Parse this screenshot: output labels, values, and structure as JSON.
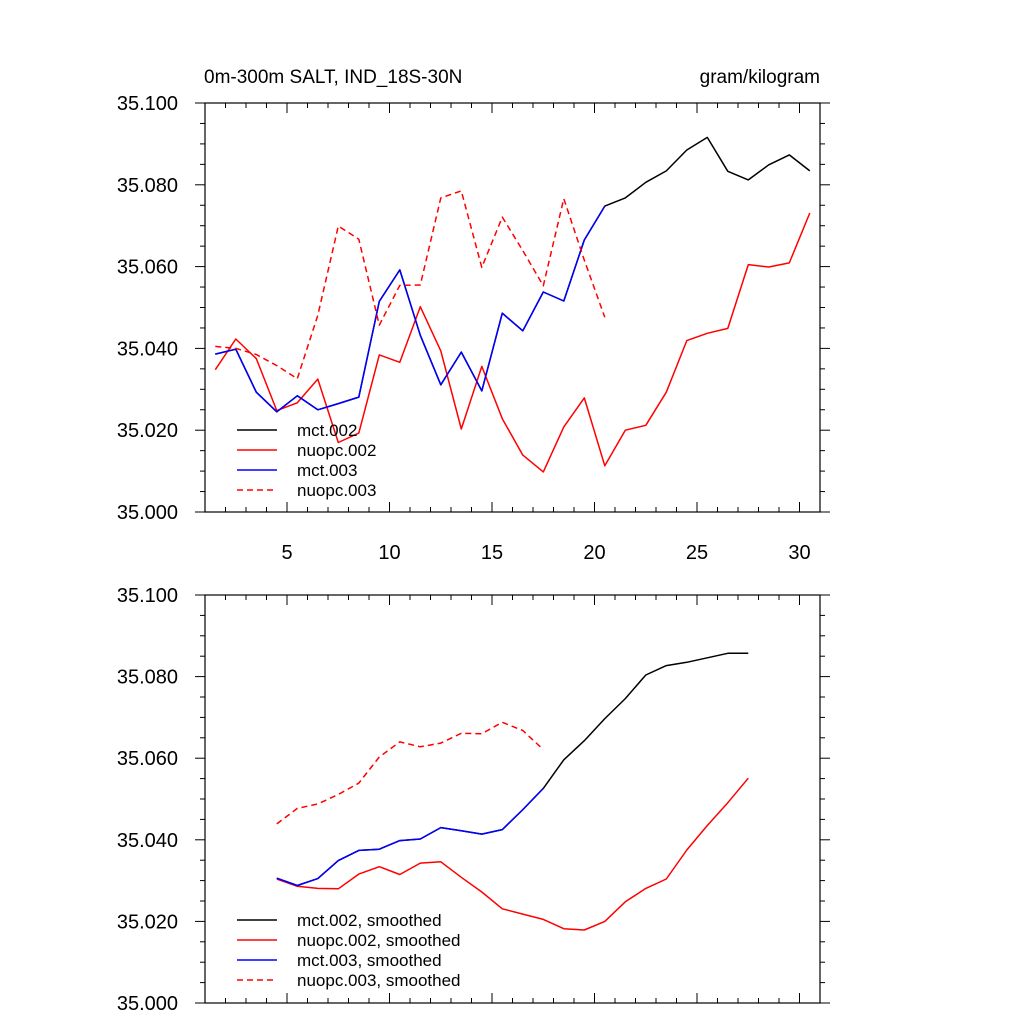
{
  "figure": {
    "title_left": "0m-300m SALT, IND_18S-30N",
    "title_right": "gram/kilogram"
  },
  "chart_data": [
    {
      "type": "line",
      "id": "raw",
      "title": "0m-300m SALT, IND_18S-30N",
      "units": "gram/kilogram",
      "xlim": [
        1,
        31
      ],
      "ylim": [
        35.0,
        35.1
      ],
      "xticks": [
        5,
        10,
        15,
        20,
        25,
        30
      ],
      "yticks": [
        35.0,
        35.02,
        35.04,
        35.06,
        35.08,
        35.1
      ],
      "ytick_labels": [
        "35.000",
        "35.020",
        "35.040",
        "35.060",
        "35.080",
        "35.100"
      ],
      "legend": "bottom-left",
      "series": [
        {
          "name": "mct.002",
          "color": "#000000",
          "dash": false,
          "x": [
            1.5,
            2.5,
            3.5,
            4.5,
            5.5,
            6.5,
            7.5,
            8.5,
            9.5,
            10.5,
            11.5,
            12.5,
            13.5,
            14.5,
            15.5,
            16.5,
            17.5,
            18.5,
            19.5,
            20.5,
            21.5,
            22.5,
            23.5,
            24.5,
            25.5,
            26.5,
            27.5,
            28.5,
            29.5,
            30.5
          ],
          "y": [
            35.0386,
            35.0398,
            35.0293,
            35.0245,
            35.0284,
            35.025,
            35.0265,
            35.0281,
            35.0515,
            35.0592,
            35.0432,
            35.0311,
            35.0391,
            35.0296,
            35.0486,
            35.0443,
            35.0538,
            35.0516,
            35.0665,
            35.0748,
            35.0768,
            35.0806,
            35.0834,
            35.0885,
            35.0916,
            35.0833,
            35.0812,
            35.0849,
            35.0873,
            35.0834
          ]
        },
        {
          "name": "nuopc.002",
          "color": "#ff0000",
          "dash": false,
          "x": [
            1.5,
            2.5,
            3.5,
            4.5,
            5.5,
            6.5,
            7.5,
            8.5,
            9.5,
            10.5,
            11.5,
            12.5,
            13.5,
            14.5,
            15.5,
            16.5,
            17.5,
            18.5,
            19.5,
            20.5,
            21.5,
            22.5,
            23.5,
            24.5,
            25.5,
            26.5,
            27.5,
            28.5,
            29.5,
            30.5
          ],
          "y": [
            35.0348,
            35.0423,
            35.0375,
            35.0248,
            35.0267,
            35.0325,
            35.017,
            35.0193,
            35.0384,
            35.0366,
            35.0502,
            35.0394,
            35.0203,
            35.0356,
            35.0228,
            35.0139,
            35.0098,
            35.0208,
            35.0279,
            35.0113,
            35.02,
            35.0212,
            35.0293,
            35.0419,
            35.0437,
            35.0449,
            35.0605,
            35.0599,
            35.0609,
            35.0731
          ]
        },
        {
          "name": "mct.003",
          "color": "#0000ff",
          "dash": false,
          "x": [
            1.5,
            2.5,
            3.5,
            4.5,
            5.5,
            6.5,
            7.5,
            8.5,
            9.5,
            10.5,
            11.5,
            12.5,
            13.5,
            14.5,
            15.5,
            16.5,
            17.5,
            18.5,
            19.5,
            20.5
          ],
          "y": [
            35.0386,
            35.0398,
            35.0293,
            35.0245,
            35.0284,
            35.025,
            35.0265,
            35.0281,
            35.0515,
            35.0592,
            35.0432,
            35.0311,
            35.0391,
            35.0296,
            35.0486,
            35.0443,
            35.0538,
            35.0516,
            35.0665,
            35.0748
          ]
        },
        {
          "name": "nuopc.003",
          "color": "#ff0000",
          "dash": true,
          "x": [
            1.5,
            2.5,
            3.5,
            4.5,
            5.5,
            6.5,
            7.5,
            8.5,
            9.5,
            10.5,
            11.5,
            12.5,
            13.5,
            14.5,
            15.5,
            16.5,
            17.5,
            18.5,
            19.5,
            20.5
          ],
          "y": [
            35.0405,
            35.04,
            35.0385,
            35.0358,
            35.0326,
            35.0481,
            35.0699,
            35.0667,
            35.0457,
            35.0554,
            35.0555,
            35.0768,
            35.0785,
            35.0598,
            35.0721,
            35.0639,
            35.0553,
            35.0766,
            35.0616,
            35.0476
          ]
        }
      ]
    },
    {
      "type": "line",
      "id": "smoothed",
      "xlim": [
        1,
        31
      ],
      "ylim": [
        35.0,
        35.1
      ],
      "xticks": [
        5,
        10,
        15,
        20,
        25,
        30
      ],
      "yticks": [
        35.0,
        35.02,
        35.04,
        35.06,
        35.08,
        35.1
      ],
      "ytick_labels": [
        "35.000",
        "35.020",
        "35.040",
        "35.060",
        "35.080",
        "35.100"
      ],
      "legend": "bottom-left",
      "series": [
        {
          "name": "mct.002, smoothed",
          "color": "#000000",
          "dash": false,
          "x": [
            4.5,
            5.5,
            6.5,
            7.5,
            8.5,
            9.5,
            10.5,
            11.5,
            12.5,
            13.5,
            14.5,
            15.5,
            16.5,
            17.5,
            18.5,
            19.5,
            20.5,
            21.5,
            22.5,
            23.5,
            24.5,
            25.5,
            26.5,
            27.5
          ],
          "y": [
            35.0306,
            35.0288,
            35.0305,
            35.0349,
            35.0374,
            35.0377,
            35.0398,
            35.0402,
            35.043,
            35.0422,
            35.0414,
            35.0425,
            35.0474,
            35.0526,
            35.0596,
            35.0643,
            35.0697,
            35.0746,
            35.0804,
            35.0827,
            35.0835,
            35.0846,
            35.0857,
            35.0857
          ]
        },
        {
          "name": "nuopc.002, smoothed",
          "color": "#ff0000",
          "dash": false,
          "x": [
            4.5,
            5.5,
            6.5,
            7.5,
            8.5,
            9.5,
            10.5,
            11.5,
            12.5,
            13.5,
            14.5,
            15.5,
            16.5,
            17.5,
            18.5,
            19.5,
            20.5,
            21.5,
            22.5,
            23.5,
            24.5,
            25.5,
            26.5,
            27.5
          ],
          "y": [
            35.0304,
            35.0286,
            35.0281,
            35.028,
            35.0316,
            35.0334,
            35.0315,
            35.0343,
            35.0346,
            35.0308,
            35.0272,
            35.0231,
            35.0218,
            35.0205,
            35.0182,
            35.0179,
            35.02,
            35.0248,
            35.0281,
            35.0304,
            35.0375,
            35.0435,
            35.0491,
            35.0551
          ]
        },
        {
          "name": "mct.003, smoothed",
          "color": "#0000ff",
          "dash": false,
          "x": [
            4.5,
            5.5,
            6.5,
            7.5,
            8.5,
            9.5,
            10.5,
            11.5,
            12.5,
            13.5,
            14.5,
            15.5,
            16.5,
            17.5
          ],
          "y": [
            35.0306,
            35.0288,
            35.0305,
            35.0349,
            35.0374,
            35.0377,
            35.0398,
            35.0402,
            35.043,
            35.0422,
            35.0414,
            35.0425,
            35.0474,
            35.0526
          ]
        },
        {
          "name": "nuopc.003, smoothed",
          "color": "#ff0000",
          "dash": true,
          "x": [
            4.5,
            5.5,
            6.5,
            7.5,
            8.5,
            9.5,
            10.5,
            11.5,
            12.5,
            13.5,
            14.5,
            15.5,
            16.5,
            17.5
          ],
          "y": [
            35.0439,
            35.0477,
            35.0488,
            35.0511,
            35.0539,
            35.0603,
            35.064,
            35.0628,
            35.0637,
            35.0661,
            35.066,
            35.0688,
            35.0668,
            35.0621
          ]
        }
      ]
    }
  ]
}
